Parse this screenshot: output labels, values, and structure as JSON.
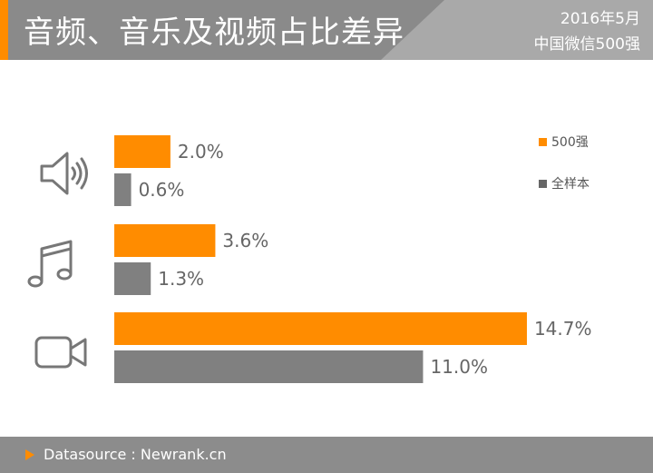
{
  "header": {
    "title": "音频、音乐及视频占比差异",
    "date": "2016年5月",
    "subtitle": "中国微信500强"
  },
  "colors": {
    "accent": "#ff8c00",
    "secondary": "#8c8c8c",
    "header_bg": "#8a8a8a"
  },
  "icons": [
    "speaker-icon",
    "music-note-icon",
    "video-camera-icon"
  ],
  "chart_data": {
    "type": "bar",
    "orientation": "horizontal",
    "categories": [
      "音频",
      "音乐",
      "视频"
    ],
    "series": [
      {
        "name": "500强",
        "color": "#ff8c00",
        "values": [
          2.0,
          3.6,
          14.7
        ],
        "labels": [
          "2.0%",
          "3.6%",
          "14.7%"
        ]
      },
      {
        "name": "全样本",
        "color": "#808080",
        "values": [
          0.6,
          1.3,
          11.0
        ],
        "labels": [
          "0.6%",
          "1.3%",
          "11.0%"
        ]
      }
    ],
    "xlim": [
      0,
      15
    ],
    "legend_position": "right",
    "grid": false
  },
  "footer": {
    "source": "Datasource : Newrank.cn"
  }
}
